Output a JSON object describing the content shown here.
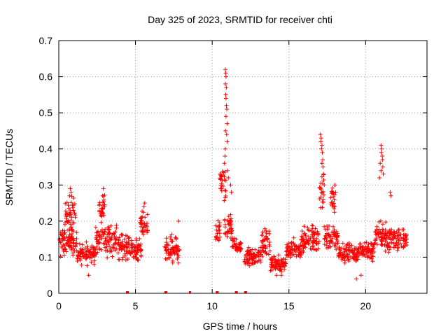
{
  "chart_data": {
    "type": "scatter",
    "title": "Day 325 of 2023, SRMTID for receiver chti",
    "xlabel": "GPS time / hours",
    "ylabel": "SRMTID / TECUs",
    "xlim": [
      0,
      24
    ],
    "ylim": [
      0,
      0.7
    ],
    "xticks": [
      0,
      5,
      10,
      15,
      20
    ],
    "xtick_labels": [
      "0",
      "5",
      "10",
      "15",
      "20"
    ],
    "yticks": [
      0,
      0.1,
      0.2,
      0.3,
      0.4,
      0.5,
      0.6,
      0.7
    ],
    "ytick_labels": [
      "0",
      "0.1",
      "0.2",
      "0.3",
      "0.4",
      "0.5",
      "0.6",
      "0.7"
    ],
    "grid": true,
    "marker": "+",
    "series_color": "#ff0000",
    "series": [
      {
        "name": "SRMTID",
        "segments": [
          {
            "x_start": 0.0,
            "x_end": 1.2,
            "y_base": 0.14,
            "y_spread": 0.05
          },
          {
            "x_start": 0.4,
            "x_end": 1.1,
            "y_base": 0.22,
            "y_spread": 0.07
          },
          {
            "x_start": 1.2,
            "x_end": 2.4,
            "y_base": 0.11,
            "y_spread": 0.04
          },
          {
            "x_start": 2.4,
            "x_end": 3.8,
            "y_base": 0.15,
            "y_spread": 0.06
          },
          {
            "x_start": 2.6,
            "x_end": 3.0,
            "y_base": 0.24,
            "y_spread": 0.05
          },
          {
            "x_start": 3.8,
            "x_end": 4.6,
            "y_base": 0.13,
            "y_spread": 0.05
          },
          {
            "x_start": 4.6,
            "x_end": 5.4,
            "y_base": 0.12,
            "y_spread": 0.04
          },
          {
            "x_start": 5.3,
            "x_end": 5.8,
            "y_base": 0.19,
            "y_spread": 0.05
          },
          {
            "x_start": 6.9,
            "x_end": 7.9,
            "y_base": 0.12,
            "y_spread": 0.05
          },
          {
            "x_start": 10.2,
            "x_end": 10.5,
            "y_base": 0.17,
            "y_spread": 0.05
          },
          {
            "x_start": 10.5,
            "x_end": 10.9,
            "y_base": 0.3,
            "y_spread": 0.07
          },
          {
            "x_start": 10.8,
            "x_end": 11.3,
            "y_base": 0.18,
            "y_spread": 0.05
          },
          {
            "x_start": 11.3,
            "x_end": 11.9,
            "y_base": 0.13,
            "y_spread": 0.03
          },
          {
            "x_start": 12.1,
            "x_end": 13.2,
            "y_base": 0.1,
            "y_spread": 0.04
          },
          {
            "x_start": 13.2,
            "x_end": 13.8,
            "y_base": 0.14,
            "y_spread": 0.06
          },
          {
            "x_start": 13.8,
            "x_end": 14.8,
            "y_base": 0.08,
            "y_spread": 0.03
          },
          {
            "x_start": 14.8,
            "x_end": 15.8,
            "y_base": 0.12,
            "y_spread": 0.04
          },
          {
            "x_start": 15.8,
            "x_end": 17.0,
            "y_base": 0.15,
            "y_spread": 0.05
          },
          {
            "x_start": 17.0,
            "x_end": 17.3,
            "y_base": 0.28,
            "y_spread": 0.08
          },
          {
            "x_start": 17.3,
            "x_end": 18.2,
            "y_base": 0.16,
            "y_spread": 0.06
          },
          {
            "x_start": 17.7,
            "x_end": 18.0,
            "y_base": 0.26,
            "y_spread": 0.05
          },
          {
            "x_start": 18.2,
            "x_end": 19.6,
            "y_base": 0.11,
            "y_spread": 0.04
          },
          {
            "x_start": 19.6,
            "x_end": 20.6,
            "y_base": 0.12,
            "y_spread": 0.04
          },
          {
            "x_start": 20.6,
            "x_end": 21.4,
            "y_base": 0.16,
            "y_spread": 0.05
          },
          {
            "x_start": 21.4,
            "x_end": 22.7,
            "y_base": 0.15,
            "y_spread": 0.05
          }
        ],
        "points": [
          [
            10.85,
            0.62
          ],
          [
            10.88,
            0.61
          ],
          [
            10.9,
            0.6
          ],
          [
            10.86,
            0.58
          ],
          [
            10.92,
            0.57
          ],
          [
            10.88,
            0.55
          ],
          [
            10.9,
            0.54
          ],
          [
            10.93,
            0.52
          ],
          [
            10.95,
            0.51
          ],
          [
            10.9,
            0.49
          ],
          [
            10.97,
            0.47
          ],
          [
            10.87,
            0.45
          ],
          [
            10.94,
            0.44
          ],
          [
            10.98,
            0.42
          ],
          [
            10.85,
            0.4
          ],
          [
            10.83,
            0.38
          ],
          [
            10.8,
            0.36
          ],
          [
            11.0,
            0.34
          ],
          [
            11.05,
            0.32
          ],
          [
            17.05,
            0.44
          ],
          [
            17.1,
            0.43
          ],
          [
            17.08,
            0.42
          ],
          [
            17.15,
            0.41
          ],
          [
            17.12,
            0.4
          ],
          [
            17.18,
            0.39
          ],
          [
            17.2,
            0.37
          ],
          [
            17.15,
            0.36
          ],
          [
            17.22,
            0.35
          ],
          [
            17.25,
            0.33
          ],
          [
            21.0,
            0.41
          ],
          [
            21.05,
            0.4
          ],
          [
            21.02,
            0.39
          ],
          [
            21.08,
            0.38
          ],
          [
            21.1,
            0.37
          ],
          [
            20.95,
            0.36
          ],
          [
            21.12,
            0.35
          ],
          [
            21.0,
            0.34
          ],
          [
            21.15,
            0.33
          ],
          [
            20.9,
            0.32
          ],
          [
            0.75,
            0.29
          ],
          [
            0.8,
            0.28
          ],
          [
            0.7,
            0.27
          ],
          [
            2.9,
            0.29
          ],
          [
            2.85,
            0.27
          ],
          [
            5.6,
            0.25
          ],
          [
            5.55,
            0.24
          ],
          [
            7.8,
            0.2
          ],
          [
            11.2,
            0.3
          ],
          [
            11.25,
            0.28
          ],
          [
            18.0,
            0.3
          ],
          [
            18.05,
            0.28
          ],
          [
            21.6,
            0.28
          ],
          [
            21.65,
            0.27
          ],
          [
            1.95,
            0.05
          ],
          [
            14.2,
            0.05
          ],
          [
            14.5,
            0.05
          ],
          [
            19.4,
            0.04
          ],
          [
            19.7,
            0.05
          ]
        ],
        "zero_points": [
          4.45,
          4.5,
          6.95,
          7.0,
          8.55,
          10.3,
          10.35,
          11.55,
          11.6,
          12.15,
          12.2
        ]
      }
    ]
  }
}
